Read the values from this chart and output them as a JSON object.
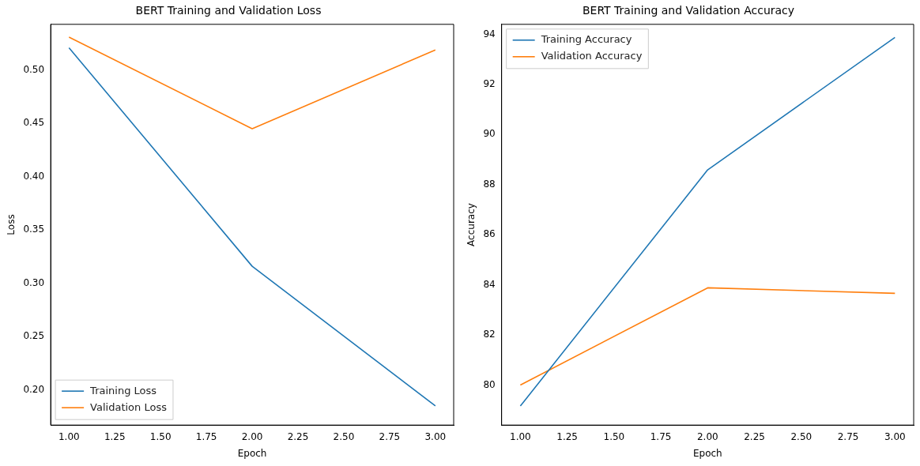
{
  "chart_data": [
    {
      "type": "line",
      "title": "BERT Training and Validation Loss",
      "xlabel": "Epoch",
      "ylabel": "Loss",
      "x": [
        1,
        2,
        3
      ],
      "series": [
        {
          "name": "Training Loss",
          "color": "#1f77b4",
          "values": [
            0.521,
            0.316,
            0.185
          ]
        },
        {
          "name": "Validation Loss",
          "color": "#ff7f0e",
          "values": [
            0.531,
            0.445,
            0.519
          ]
        }
      ],
      "xlim": [
        0.9,
        3.1
      ],
      "xticks": [
        {
          "value": 1,
          "label": "1.00"
        },
        {
          "value": 1.25,
          "label": "1.25"
        },
        {
          "value": 1.5,
          "label": "1.50"
        },
        {
          "value": 1.75,
          "label": "1.75"
        },
        {
          "value": 2,
          "label": "2.00"
        },
        {
          "value": 2.25,
          "label": "2.25"
        },
        {
          "value": 2.5,
          "label": "2.50"
        },
        {
          "value": 2.75,
          "label": "2.75"
        },
        {
          "value": 3,
          "label": "3.00"
        }
      ],
      "ylim": [
        0.167,
        0.543
      ],
      "yticks": [
        {
          "value": 0.2,
          "label": "0.20"
        },
        {
          "value": 0.25,
          "label": "0.25"
        },
        {
          "value": 0.3,
          "label": "0.30"
        },
        {
          "value": 0.35,
          "label": "0.35"
        },
        {
          "value": 0.4,
          "label": "0.40"
        },
        {
          "value": 0.45,
          "label": "0.45"
        },
        {
          "value": 0.5,
          "label": "0.50"
        }
      ],
      "legend": "bottom left",
      "grid": false,
      "marker": "none",
      "line_style": "solid"
    },
    {
      "type": "line",
      "title": "BERT Training and Validation Accuracy",
      "xlabel": "Epoch",
      "ylabel": "Accuracy",
      "x": [
        1,
        2,
        3
      ],
      "series": [
        {
          "name": "Training Accuracy",
          "color": "#1f77b4",
          "values": [
            79.16,
            88.59,
            93.88
          ]
        },
        {
          "name": "Validation Accuracy",
          "color": "#ff7f0e",
          "values": [
            80.0,
            83.88,
            83.66
          ]
        }
      ],
      "xlim": [
        0.9,
        3.1
      ],
      "xticks": [
        {
          "value": 1,
          "label": "1.00"
        },
        {
          "value": 1.25,
          "label": "1.25"
        },
        {
          "value": 1.5,
          "label": "1.50"
        },
        {
          "value": 1.75,
          "label": "1.75"
        },
        {
          "value": 2,
          "label": "2.00"
        },
        {
          "value": 2.25,
          "label": "2.25"
        },
        {
          "value": 2.5,
          "label": "2.50"
        },
        {
          "value": 2.75,
          "label": "2.75"
        },
        {
          "value": 3,
          "label": "3.00"
        }
      ],
      "ylim": [
        78.4,
        94.4
      ],
      "yticks": [
        80,
        82,
        84,
        86,
        88,
        90,
        92,
        94
      ],
      "legend": "top left",
      "grid": false,
      "marker": "none",
      "line_style": "solid"
    }
  ]
}
